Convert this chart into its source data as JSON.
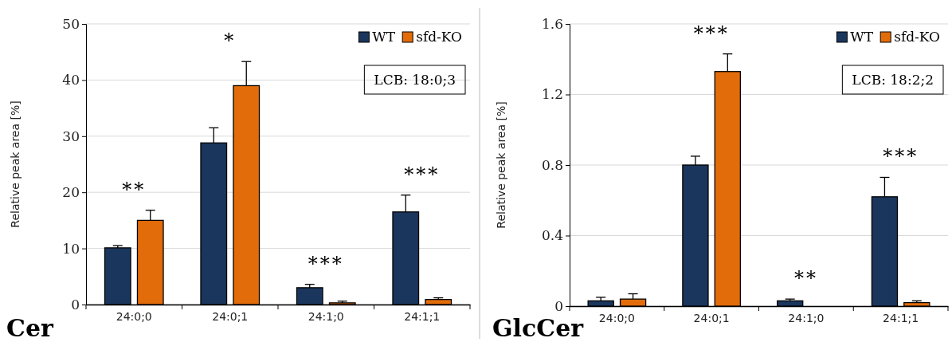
{
  "chart_data": [
    {
      "type": "bar",
      "title": "Cer",
      "ylabel": "Relative peak area [%]",
      "categories": [
        "24:0;0",
        "24:0;1",
        "24:1;0",
        "24:1;1"
      ],
      "series": [
        {
          "name": "WT",
          "color": "#1b365d",
          "values": [
            10.1,
            28.8,
            3.0,
            16.5
          ],
          "errors": [
            0.4,
            2.7,
            0.6,
            3.0
          ]
        },
        {
          "name": "sfd-KO",
          "color": "#e36c0a",
          "values": [
            15.0,
            39.0,
            0.3,
            0.9
          ],
          "errors": [
            1.8,
            4.3,
            0.3,
            0.3
          ]
        }
      ],
      "ylim": [
        0,
        50
      ],
      "yticks": [
        0,
        10,
        20,
        30,
        40,
        50
      ],
      "grid": "y",
      "legend": "top right",
      "annotations": [
        "LCB: 18:0;3",
        "**",
        "*",
        "***",
        "***"
      ]
    },
    {
      "type": "bar",
      "title": "GlcCer",
      "ylabel": "Relative peak area [%]",
      "categories": [
        "24:0;0",
        "24:0;1",
        "24:1;0",
        "24:1;1"
      ],
      "series": [
        {
          "name": "WT",
          "color": "#1b365d",
          "values": [
            0.03,
            0.8,
            0.03,
            0.62
          ],
          "errors": [
            0.02,
            0.05,
            0.01,
            0.11
          ]
        },
        {
          "name": "sfd-KO",
          "color": "#e36c0a",
          "values": [
            0.04,
            1.33,
            0,
            0.02
          ],
          "errors": [
            0.03,
            0.1,
            null,
            0.01
          ]
        }
      ],
      "ylim": [
        0,
        1.6
      ],
      "yticks": [
        0,
        0.4,
        0.8,
        1.2,
        1.6
      ],
      "grid": "y",
      "legend": "top right",
      "annotations": [
        "LCB: 18:2;2",
        "***",
        "**",
        "***"
      ]
    }
  ]
}
